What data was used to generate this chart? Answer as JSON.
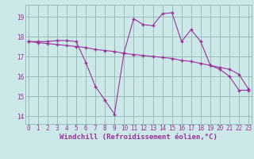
{
  "xlabel": "Windchill (Refroidissement éolien,°C)",
  "background_color": "#cce8e8",
  "line_color": "#993399",
  "grid_color": "#99bbbb",
  "x_ticks": [
    0,
    1,
    2,
    3,
    4,
    5,
    6,
    7,
    8,
    9,
    10,
    11,
    12,
    13,
    14,
    15,
    16,
    17,
    18,
    19,
    20,
    21,
    22,
    23
  ],
  "y_ticks": [
    14,
    15,
    16,
    17,
    18,
    19
  ],
  "xlim": [
    -0.3,
    23.3
  ],
  "ylim": [
    13.6,
    19.6
  ],
  "line1_x": [
    0,
    1,
    2,
    3,
    4,
    5,
    6,
    7,
    8,
    9,
    10,
    11,
    12,
    13,
    14,
    15,
    16,
    17,
    18,
    19,
    20,
    21,
    22,
    23
  ],
  "line1_y": [
    17.75,
    17.75,
    17.75,
    17.8,
    17.8,
    17.75,
    16.7,
    15.5,
    14.8,
    14.1,
    17.2,
    18.9,
    18.6,
    18.55,
    19.15,
    19.2,
    17.75,
    18.35,
    17.75,
    16.55,
    16.35,
    16.0,
    15.3,
    15.3
  ],
  "line2_x": [
    0,
    1,
    2,
    3,
    4,
    5,
    6,
    7,
    8,
    9,
    10,
    11,
    12,
    13,
    14,
    15,
    16,
    17,
    18,
    19,
    20,
    21,
    22,
    23
  ],
  "line2_y": [
    17.75,
    17.7,
    17.65,
    17.6,
    17.55,
    17.5,
    17.45,
    17.35,
    17.3,
    17.25,
    17.15,
    17.1,
    17.05,
    17.0,
    16.95,
    16.9,
    16.8,
    16.75,
    16.65,
    16.55,
    16.45,
    16.35,
    16.1,
    15.35
  ],
  "tick_fontsize": 5.5,
  "xlabel_fontsize": 6.5
}
